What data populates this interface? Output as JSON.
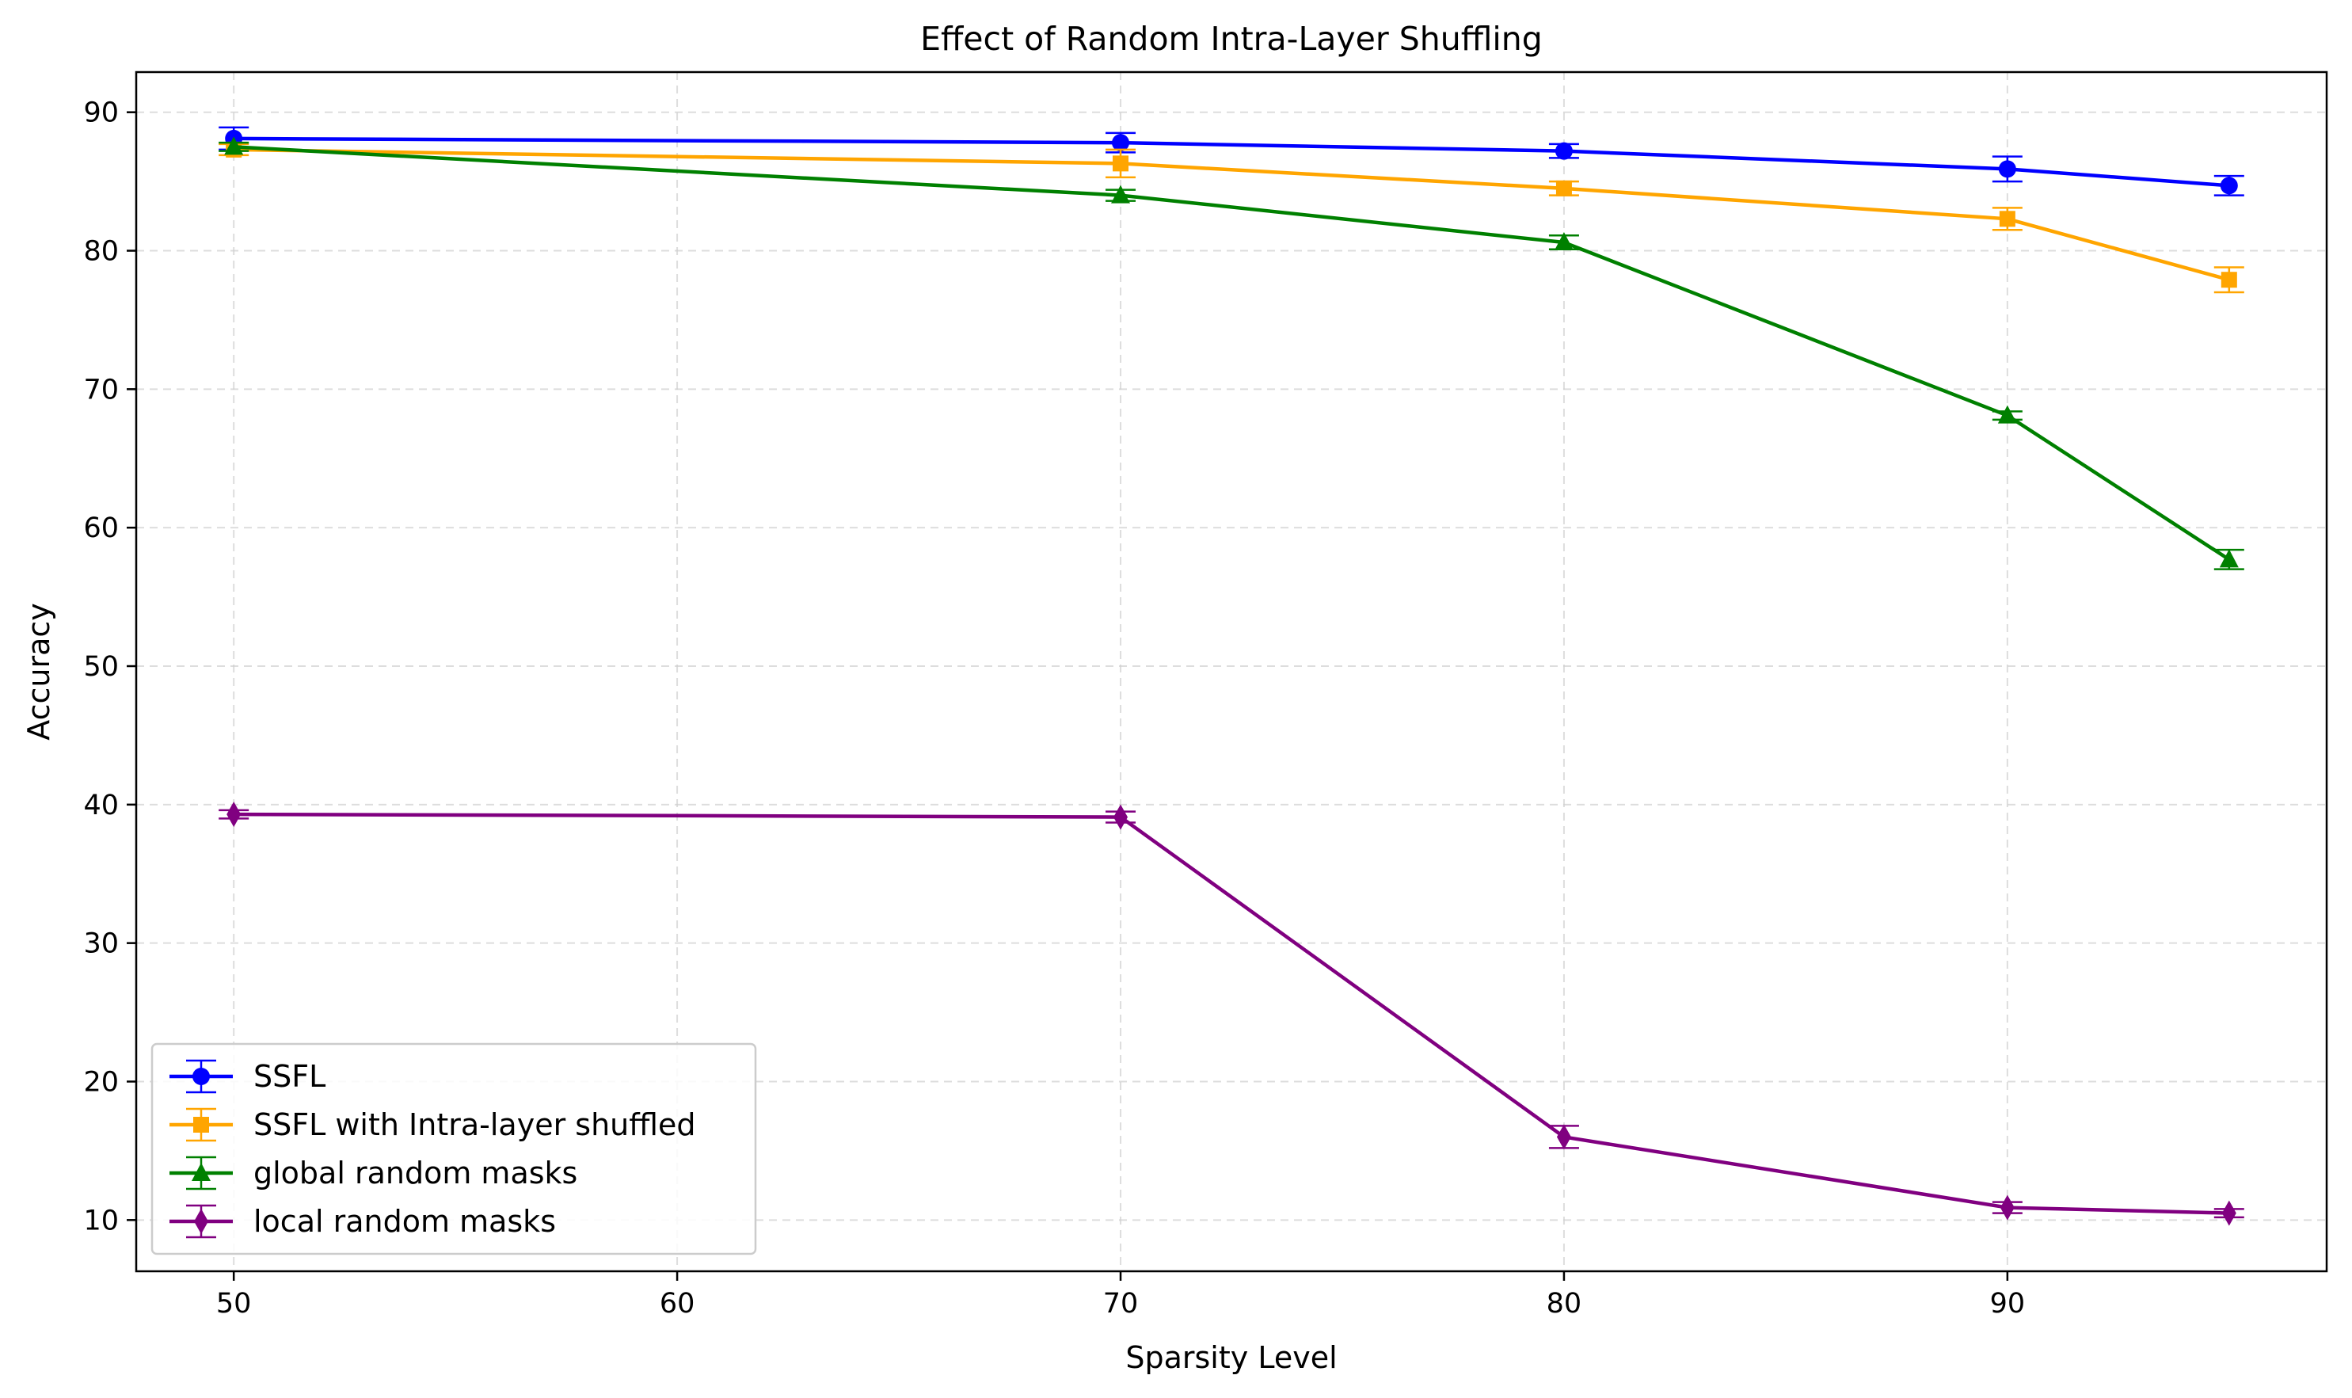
{
  "chart_data": {
    "type": "line",
    "title": "Effect of Random Intra-Layer Shuffling",
    "xlabel": "Sparsity Level",
    "ylabel": "Accuracy",
    "xlim": [
      47.8,
      97.2
    ],
    "ylim": [
      6.3,
      92.9
    ],
    "xticks": [
      50,
      60,
      70,
      80,
      90
    ],
    "yticks": [
      10,
      20,
      30,
      40,
      50,
      60,
      70,
      80,
      90
    ],
    "grid": true,
    "legend_position": "lower-left",
    "x": [
      50,
      70,
      80,
      90,
      95
    ],
    "series": [
      {
        "name": "SSFL",
        "color": "#0000ff",
        "marker": "circle",
        "values": [
          88.1,
          87.8,
          87.2,
          85.9,
          84.7
        ],
        "errors": [
          0.8,
          0.7,
          0.5,
          0.9,
          0.7
        ]
      },
      {
        "name": "SSFL with Intra-layer shuffled",
        "color": "#ffa500",
        "marker": "square",
        "values": [
          87.3,
          86.3,
          84.5,
          82.3,
          77.9
        ],
        "errors": [
          0.4,
          1.0,
          0.5,
          0.8,
          0.9
        ]
      },
      {
        "name": "global random masks",
        "color": "#008000",
        "marker": "triangle",
        "values": [
          87.5,
          84.0,
          80.6,
          68.1,
          57.7
        ],
        "errors": [
          0.3,
          0.4,
          0.5,
          0.3,
          0.7
        ]
      },
      {
        "name": "local random masks",
        "color": "#800080",
        "marker": "diamond",
        "values": [
          39.3,
          39.1,
          16.0,
          10.9,
          10.5
        ],
        "errors": [
          0.3,
          0.4,
          0.8,
          0.4,
          0.3
        ]
      }
    ]
  }
}
